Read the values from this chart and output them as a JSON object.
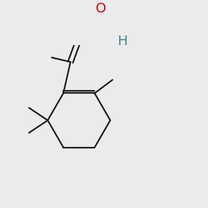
{
  "bg_color": "#ebebeb",
  "bond_color": "#1a1a1a",
  "O_color": "#dd0000",
  "H_color": "#3a8a8a",
  "lw": 1.6,
  "font_size": 14
}
